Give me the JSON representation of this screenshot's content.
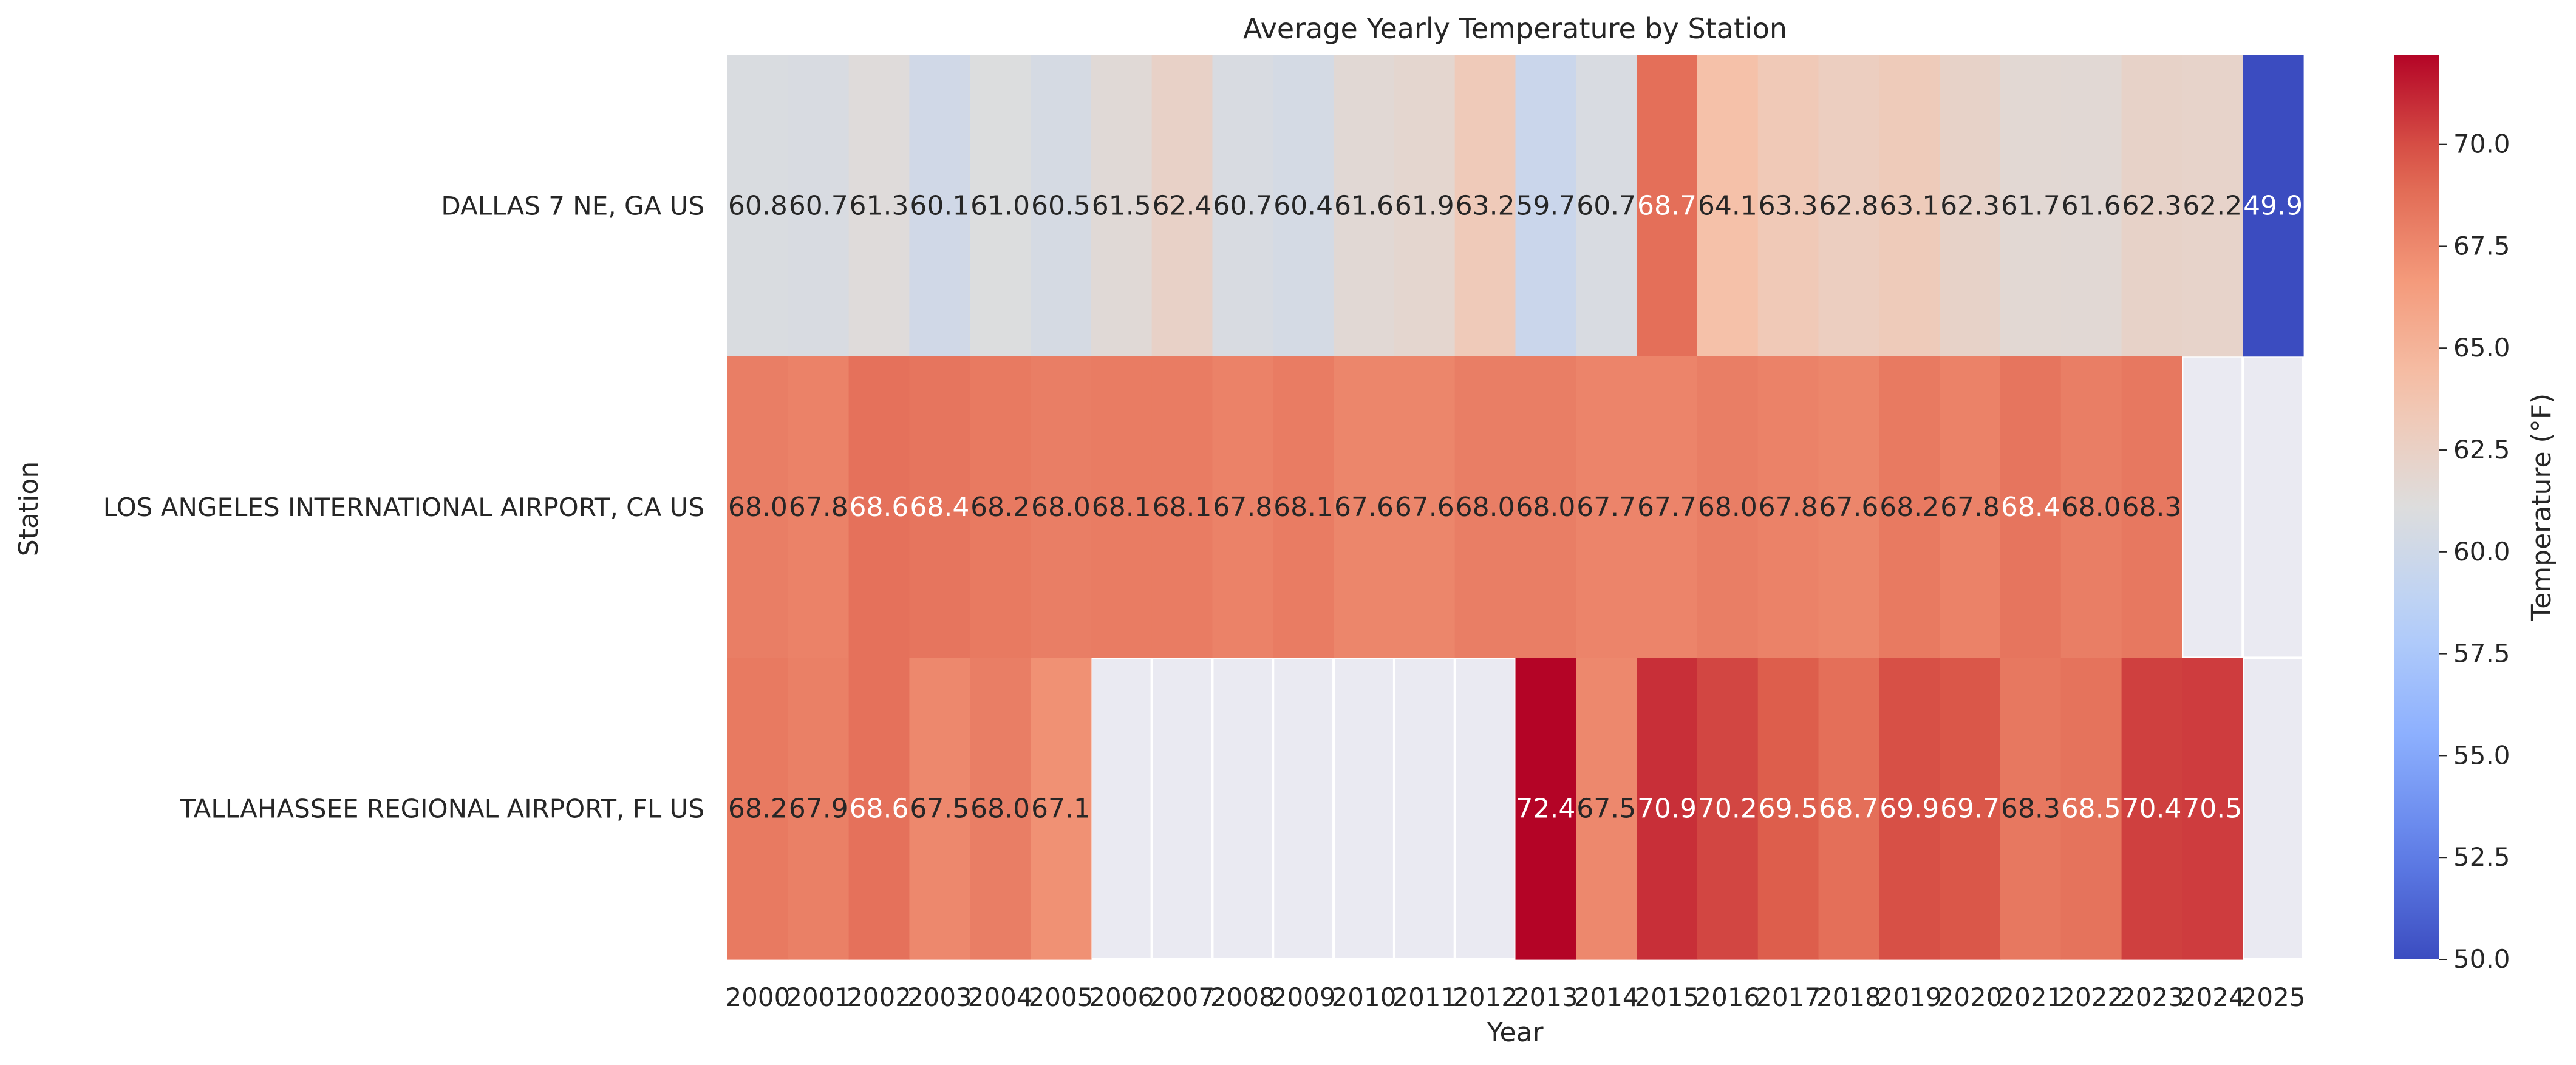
{
  "chart_data": {
    "type": "heatmap",
    "title": "Average Yearly Temperature by Station",
    "xlabel": "Year",
    "ylabel": "Station",
    "colorbar_label": "Temperature (°F)",
    "colormap": "coolwarm",
    "vmin": 50.0,
    "vmax": 72.2,
    "colorbar_ticks": [
      "50.0",
      "52.5",
      "55.0",
      "57.5",
      "60.0",
      "62.5",
      "65.0",
      "67.5",
      "70.0"
    ],
    "missing_color": "#eaeaf2",
    "grid_color": "#ffffff",
    "x": [
      "2000",
      "2001",
      "2002",
      "2003",
      "2004",
      "2005",
      "2006",
      "2007",
      "2008",
      "2009",
      "2010",
      "2011",
      "2012",
      "2013",
      "2014",
      "2015",
      "2016",
      "2017",
      "2018",
      "2019",
      "2020",
      "2021",
      "2022",
      "2023",
      "2024",
      "2025"
    ],
    "y": [
      "DALLAS 7 NE, GA US",
      "LOS ANGELES INTERNATIONAL AIRPORT, CA US",
      "TALLAHASSEE REGIONAL AIRPORT, FL US"
    ],
    "values": [
      [
        60.8,
        60.7,
        61.3,
        60.1,
        61.0,
        60.5,
        61.5,
        62.4,
        60.7,
        60.4,
        61.6,
        61.9,
        63.2,
        59.7,
        60.7,
        68.7,
        64.1,
        63.3,
        62.8,
        63.1,
        62.3,
        61.7,
        61.6,
        62.3,
        62.2,
        49.9
      ],
      [
        68.0,
        67.8,
        68.6,
        68.4,
        68.2,
        68.0,
        68.1,
        68.1,
        67.8,
        68.1,
        67.6,
        67.6,
        68.0,
        68.0,
        67.7,
        67.7,
        68.0,
        67.8,
        67.6,
        68.2,
        67.8,
        68.4,
        68.0,
        68.3,
        null,
        null
      ],
      [
        68.2,
        67.9,
        68.6,
        67.5,
        68.0,
        67.1,
        null,
        null,
        null,
        null,
        null,
        null,
        null,
        72.4,
        67.5,
        70.9,
        70.2,
        69.5,
        68.7,
        69.9,
        69.7,
        68.3,
        68.5,
        70.4,
        70.5,
        null
      ]
    ]
  }
}
